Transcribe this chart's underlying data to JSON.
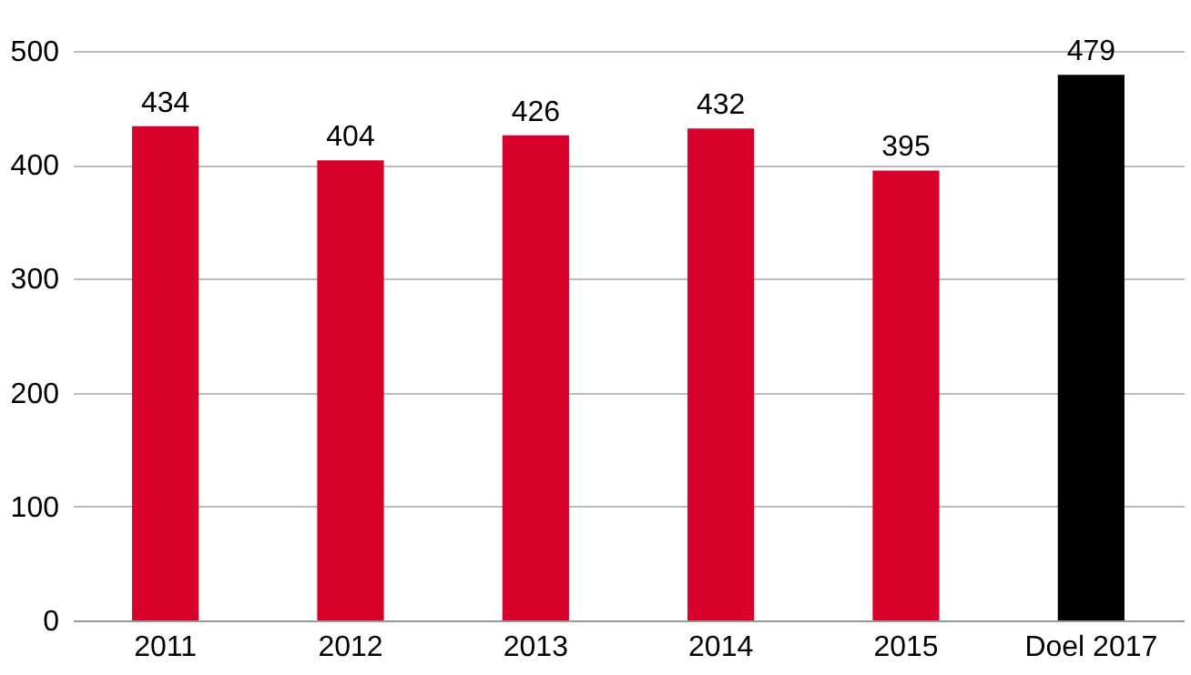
{
  "chart_data": {
    "type": "bar",
    "categories": [
      "2011",
      "2012",
      "2013",
      "2014",
      "2015",
      "Doel 2017"
    ],
    "values": [
      434,
      404,
      426,
      432,
      395,
      479
    ],
    "colors": [
      "#d7002b",
      "#d7002b",
      "#d7002b",
      "#d7002b",
      "#d7002b",
      "#000000"
    ],
    "ylim": [
      0,
      500
    ],
    "yticks": [
      0,
      100,
      200,
      300,
      400,
      500
    ],
    "grid": "y",
    "data_labels": true
  }
}
